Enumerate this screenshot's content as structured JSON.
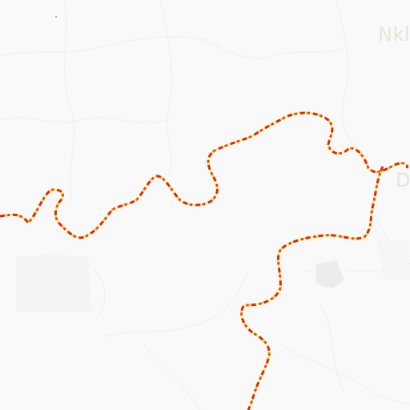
{
  "map": {
    "labels": [
      {
        "id": "nk",
        "text": "Nkl"
      },
      {
        "id": "d",
        "text": "D"
      }
    ],
    "colors": {
      "background": "#f9f9f9",
      "faint_roads": "#efefef",
      "river": "#ffffff",
      "border_dash_red": "#d92b00",
      "border_dash_orange": "#f08a00",
      "border_dash_yellow": "#f6d44a",
      "label_text": "#e9e4d6"
    }
  }
}
